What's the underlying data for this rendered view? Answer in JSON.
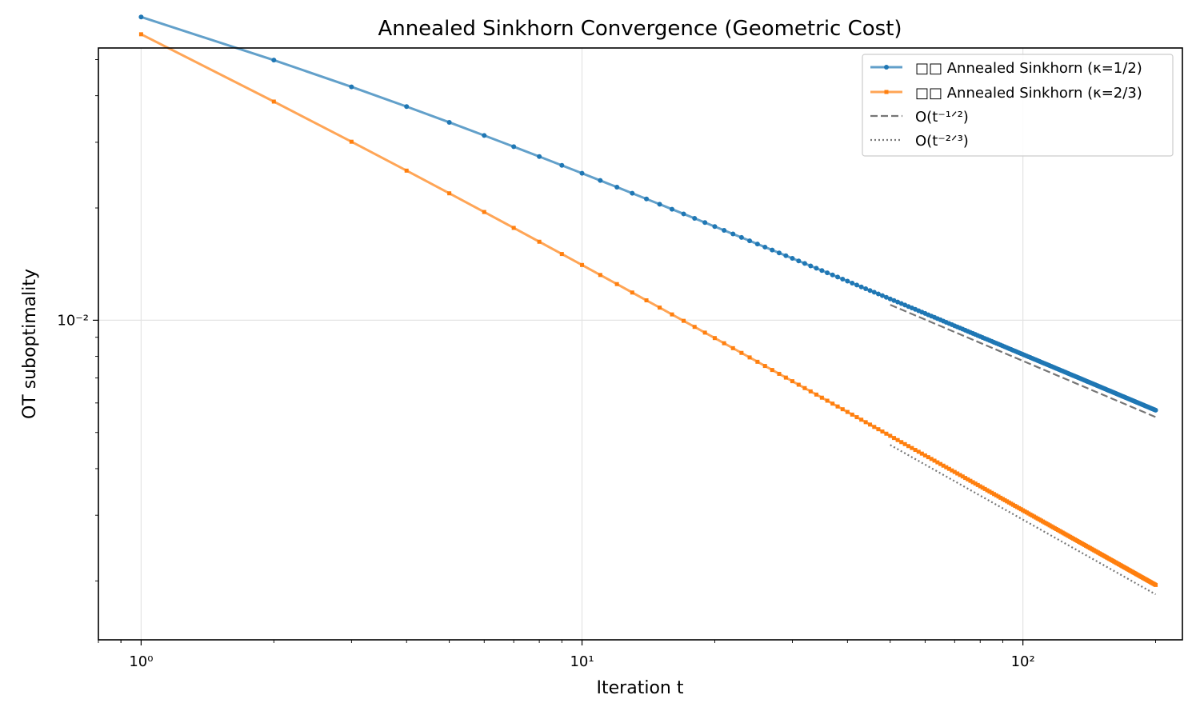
{
  "chart_data": {
    "type": "line",
    "title": "Annealed Sinkhorn Convergence (Geometric Cost)",
    "xlabel": "Iteration t",
    "ylabel": "OT suboptimality",
    "xscale": "log",
    "yscale": "log",
    "xlim": [
      0.8,
      230
    ],
    "ylim": [
      0.00139,
      0.0537
    ],
    "x_major_ticks": [
      1,
      10,
      100
    ],
    "x_tick_labels": [
      "10⁰",
      "10¹",
      "10²"
    ],
    "y_major_ticks": [
      0.01
    ],
    "y_tick_labels": [
      "10⁻²"
    ],
    "grid": true,
    "legend_position": "top-right",
    "x": {
      "start": 1,
      "end": 200,
      "step": 1
    },
    "series": [
      {
        "name": "□□ Annealed Sinkhorn (κ=1/2)",
        "model": {
          "form": "a*t^(-p)*(1+b/(1+t))",
          "a": 0.0813,
          "p": 0.5,
          "b": -0.4
        },
        "marker": "circle",
        "color": "#1f77b4",
        "dash": "solid"
      },
      {
        "name": "□□ Annealed Sinkhorn (κ=2/3)",
        "model": {
          "form": "a*t^(-p)*(1+b/(1+t))",
          "a": 0.0668,
          "p": 0.6667,
          "b": -0.25
        },
        "marker": "square",
        "color": "#ff7f0e",
        "dash": "solid"
      },
      {
        "name": "O(t⁻¹ᐟ²)",
        "x": [
          50,
          200
        ],
        "y": [
          0.011,
          0.0055
        ],
        "color": "#555555",
        "dash": "dashed"
      },
      {
        "name": "O(t⁻²ᐟ³)",
        "x": [
          50,
          200
        ],
        "y": [
          0.00463,
          0.00184
        ],
        "color": "#555555",
        "dash": "dotted"
      }
    ]
  }
}
